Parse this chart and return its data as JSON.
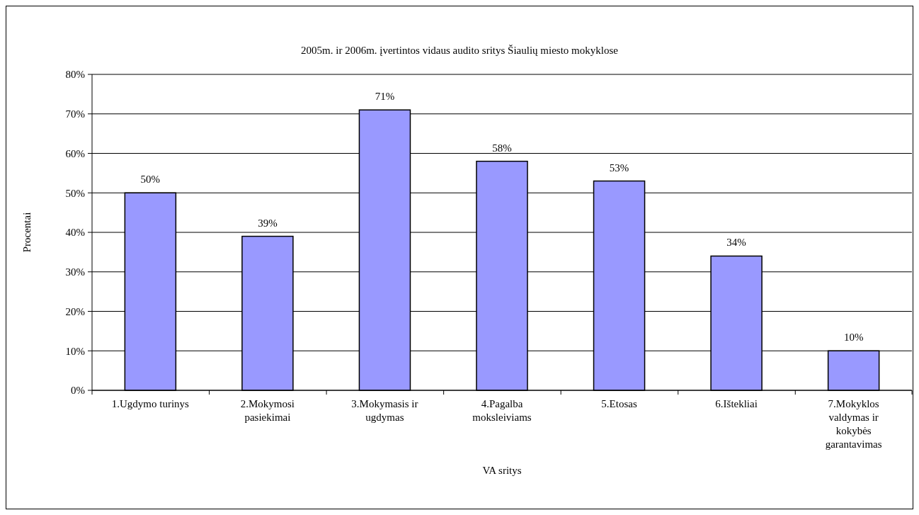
{
  "chart_data": {
    "type": "bar",
    "title": "2005m. ir 2006m. įvertintos vidaus audito sritys Šiaulių miesto mokyklose",
    "xlabel": "VA sritys",
    "ylabel": "Procentai",
    "categories": [
      "1.Ugdymo turinys",
      "2.Mokymosi pasiekimai",
      "3.Mokymasis ir ugdymas",
      "4.Pagalba moksleiviams",
      "5.Etosas",
      "6.Ištekliai",
      "7.Mokyklos valdymas ir kokybės garantavimas"
    ],
    "values": [
      50,
      39,
      71,
      58,
      53,
      34,
      10
    ],
    "value_labels": [
      "50%",
      "39%",
      "71%",
      "58%",
      "53%",
      "34%",
      "10%"
    ],
    "color": "#9999ff",
    "ylim": [
      0,
      80
    ],
    "yticks": [
      {
        "value": 0,
        "label": "0%"
      },
      {
        "value": 10,
        "label": "10%"
      },
      {
        "value": 20,
        "label": "20%"
      },
      {
        "value": 30,
        "label": "30%"
      },
      {
        "value": 40,
        "label": "40%"
      },
      {
        "value": 50,
        "label": "50%"
      },
      {
        "value": 60,
        "label": "60%"
      },
      {
        "value": 70,
        "label": "70%"
      },
      {
        "value": 80,
        "label": "80%"
      }
    ],
    "grid": "y"
  }
}
